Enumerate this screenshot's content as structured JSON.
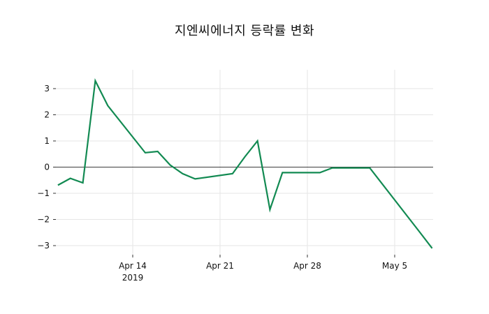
{
  "title": "지엔씨에너지 등락률 변화",
  "chart_data": {
    "type": "line",
    "title": "지엔씨에너지 등락률 변화",
    "xlabel": "",
    "ylabel": "",
    "grid": true,
    "zero_line": true,
    "legend": "none",
    "ylim": [
      -3.35,
      3.72
    ],
    "x_range": [
      "2019-04-08",
      "2019-05-08"
    ],
    "series": [
      {
        "name": "등락률",
        "points": [
          {
            "date": "2019-04-08",
            "value": -0.69
          },
          {
            "date": "2019-04-09",
            "value": -0.43
          },
          {
            "date": "2019-04-10",
            "value": -0.6
          },
          {
            "date": "2019-04-11",
            "value": 3.3
          },
          {
            "date": "2019-04-12",
            "value": 2.35
          },
          {
            "date": "2019-04-15",
            "value": 0.55
          },
          {
            "date": "2019-04-16",
            "value": 0.6
          },
          {
            "date": "2019-04-17",
            "value": 0.08
          },
          {
            "date": "2019-04-18",
            "value": -0.25
          },
          {
            "date": "2019-04-19",
            "value": -0.45
          },
          {
            "date": "2019-04-22",
            "value": -0.25
          },
          {
            "date": "2019-04-23",
            "value": 0.4
          },
          {
            "date": "2019-04-24",
            "value": 1.0
          },
          {
            "date": "2019-04-25",
            "value": -1.62
          },
          {
            "date": "2019-04-26",
            "value": -0.21
          },
          {
            "date": "2019-04-29",
            "value": -0.21
          },
          {
            "date": "2019-04-30",
            "value": -0.03
          },
          {
            "date": "2019-05-02",
            "value": -0.03
          },
          {
            "date": "2019-05-03",
            "value": -0.03
          },
          {
            "date": "2019-05-07",
            "value": -2.48
          },
          {
            "date": "2019-05-08",
            "value": -3.1
          }
        ]
      }
    ],
    "x_ticks": [
      {
        "date": "2019-04-14",
        "label": "Apr 14",
        "sublabel": "2019"
      },
      {
        "date": "2019-04-21",
        "label": "Apr 21",
        "sublabel": ""
      },
      {
        "date": "2019-04-28",
        "label": "Apr 28",
        "sublabel": ""
      },
      {
        "date": "2019-05-05",
        "label": "May 5",
        "sublabel": ""
      }
    ],
    "y_ticks": [
      {
        "value": 3,
        "label": "3"
      },
      {
        "value": 2,
        "label": "2"
      },
      {
        "value": 1,
        "label": "1"
      },
      {
        "value": 0,
        "label": "0"
      },
      {
        "value": -1,
        "label": "−1"
      },
      {
        "value": -2,
        "label": "−2"
      },
      {
        "value": -3,
        "label": "−3"
      }
    ],
    "colors": {
      "line": "#128a52",
      "grid": "#e6e6e6",
      "zero_line": "#3c3c3c",
      "tick": "#333333",
      "text": "#111111",
      "background": "#ffffff"
    }
  }
}
